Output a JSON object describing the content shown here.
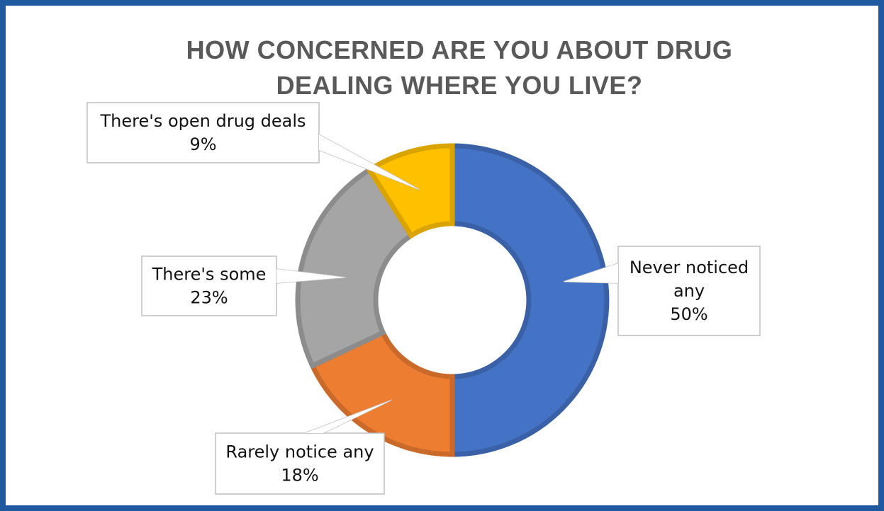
{
  "chart_data": {
    "type": "pie",
    "variant": "donut",
    "title": "HOW CONCERNED ARE YOU ABOUT DRUG DEALING WHERE YOU LIVE?",
    "title_lines": [
      "HOW CONCERNED ARE YOU ABOUT DRUG",
      "DEALING WHERE YOU LIVE?"
    ],
    "slices": [
      {
        "label": "Never noticed any",
        "label_lines": [
          "Never noticed",
          "any"
        ],
        "value": 50,
        "value_label": "50%",
        "color": "#4472c4"
      },
      {
        "label": "Rarely notice any",
        "label_lines": [
          "Rarely notice any"
        ],
        "value": 18,
        "value_label": "18%",
        "color": "#ed7d31"
      },
      {
        "label": "There's some",
        "label_lines": [
          "There's some"
        ],
        "value": 23,
        "value_label": "23%",
        "color": "#a5a5a5"
      },
      {
        "label": "There's open drug deals",
        "label_lines": [
          "There's open drug deals"
        ],
        "value": 9,
        "value_label": "9%",
        "color": "#ffc000"
      }
    ],
    "legend": "none"
  },
  "frame_color": "#1f5aa0"
}
